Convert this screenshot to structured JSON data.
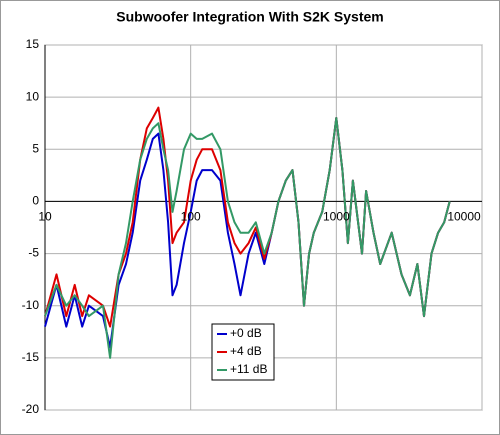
{
  "chart_data": {
    "type": "line",
    "title": "Subwoofer Integration With S2K System",
    "x": [
      10,
      12,
      14,
      16,
      18,
      20,
      25,
      28,
      32,
      36,
      40,
      45,
      50,
      55,
      60,
      65,
      70,
      75,
      80,
      90,
      100,
      110,
      120,
      140,
      160,
      180,
      200,
      220,
      250,
      280,
      320,
      360,
      400,
      450,
      500,
      550,
      600,
      650,
      700,
      800,
      900,
      1000,
      1100,
      1200,
      1300,
      1500,
      1600,
      1800,
      2000,
      2400,
      2800,
      3200,
      3600,
      4000,
      4500,
      5000,
      5500,
      6000
    ],
    "series": [
      {
        "name": "+0 dB",
        "color": "#0000cc",
        "values": [
          -12,
          -8,
          -12,
          -9,
          -12,
          -10,
          -11,
          -14,
          -8,
          -6,
          -3,
          2,
          4,
          6,
          6.5,
          3,
          -2,
          -9,
          -8,
          -4,
          -1,
          2,
          3,
          3,
          2,
          -3,
          -6,
          -9,
          -5,
          -3,
          -6,
          -3,
          0,
          2,
          3,
          -2,
          -10,
          -5,
          -3,
          -1,
          3,
          8,
          3,
          -4,
          2,
          -5,
          1,
          -3,
          -6,
          -3,
          -7,
          -9,
          -6,
          -11,
          -5,
          -3,
          -2,
          0
        ]
      },
      {
        "name": "+4 dB",
        "color": "#dd0000",
        "values": [
          -11,
          -7,
          -11,
          -8,
          -11,
          -9,
          -10,
          -12,
          -7,
          -5,
          -2,
          4,
          7,
          8,
          9,
          6,
          2,
          -4,
          -3,
          -2,
          2,
          4,
          5,
          5,
          3,
          -2,
          -4,
          -5,
          -4,
          -2.5,
          -5.5,
          -3,
          0,
          2,
          3,
          -2,
          -10,
          -5,
          -3,
          -1,
          3,
          8,
          3,
          -4,
          2,
          -5,
          1,
          -3,
          -6,
          -3,
          -7,
          -9,
          -6,
          -11,
          -5,
          -3,
          -2,
          0
        ]
      },
      {
        "name": "+11 dB",
        "color": "#339966",
        "values": [
          -11,
          -8,
          -10,
          -9,
          -10,
          -11,
          -10,
          -15,
          -7,
          -4,
          0,
          4,
          6,
          7,
          7.5,
          5,
          3,
          -1,
          1,
          5,
          6.5,
          6,
          6,
          6.5,
          5,
          0,
          -2,
          -3,
          -3,
          -2,
          -5,
          -3,
          0,
          2,
          3,
          -2,
          -10,
          -5,
          -3,
          -1,
          3,
          8,
          3,
          -4,
          2,
          -5,
          1,
          -3,
          -6,
          -3,
          -7,
          -9,
          -6,
          -11,
          -5,
          -3,
          -2,
          0
        ]
      }
    ],
    "xscale": "log",
    "xlim": [
      10,
      10000
    ],
    "xticks": [
      10,
      100,
      1000,
      10000
    ],
    "ylim": [
      -20,
      15
    ],
    "yticks": [
      -20,
      -15,
      -10,
      -5,
      0,
      5,
      10,
      15
    ],
    "grid": true
  }
}
